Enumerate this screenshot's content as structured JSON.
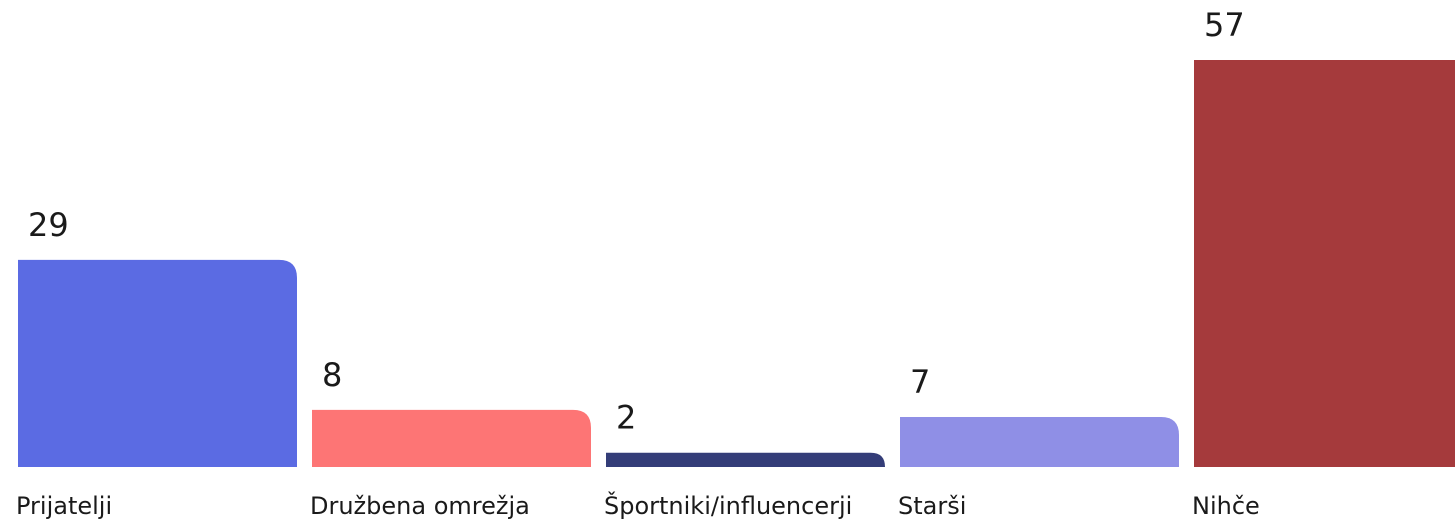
{
  "chart_data": {
    "type": "bar",
    "categories": [
      "Prijatelji",
      "Družbena omrežja",
      "Športniki/influencerji",
      "Starši",
      "Nihče"
    ],
    "values": [
      29,
      8,
      2,
      7,
      57
    ],
    "colors": [
      "#5b6be3",
      "#fd7575",
      "#343d78",
      "#8f8fe6",
      "#a53a3c"
    ]
  }
}
